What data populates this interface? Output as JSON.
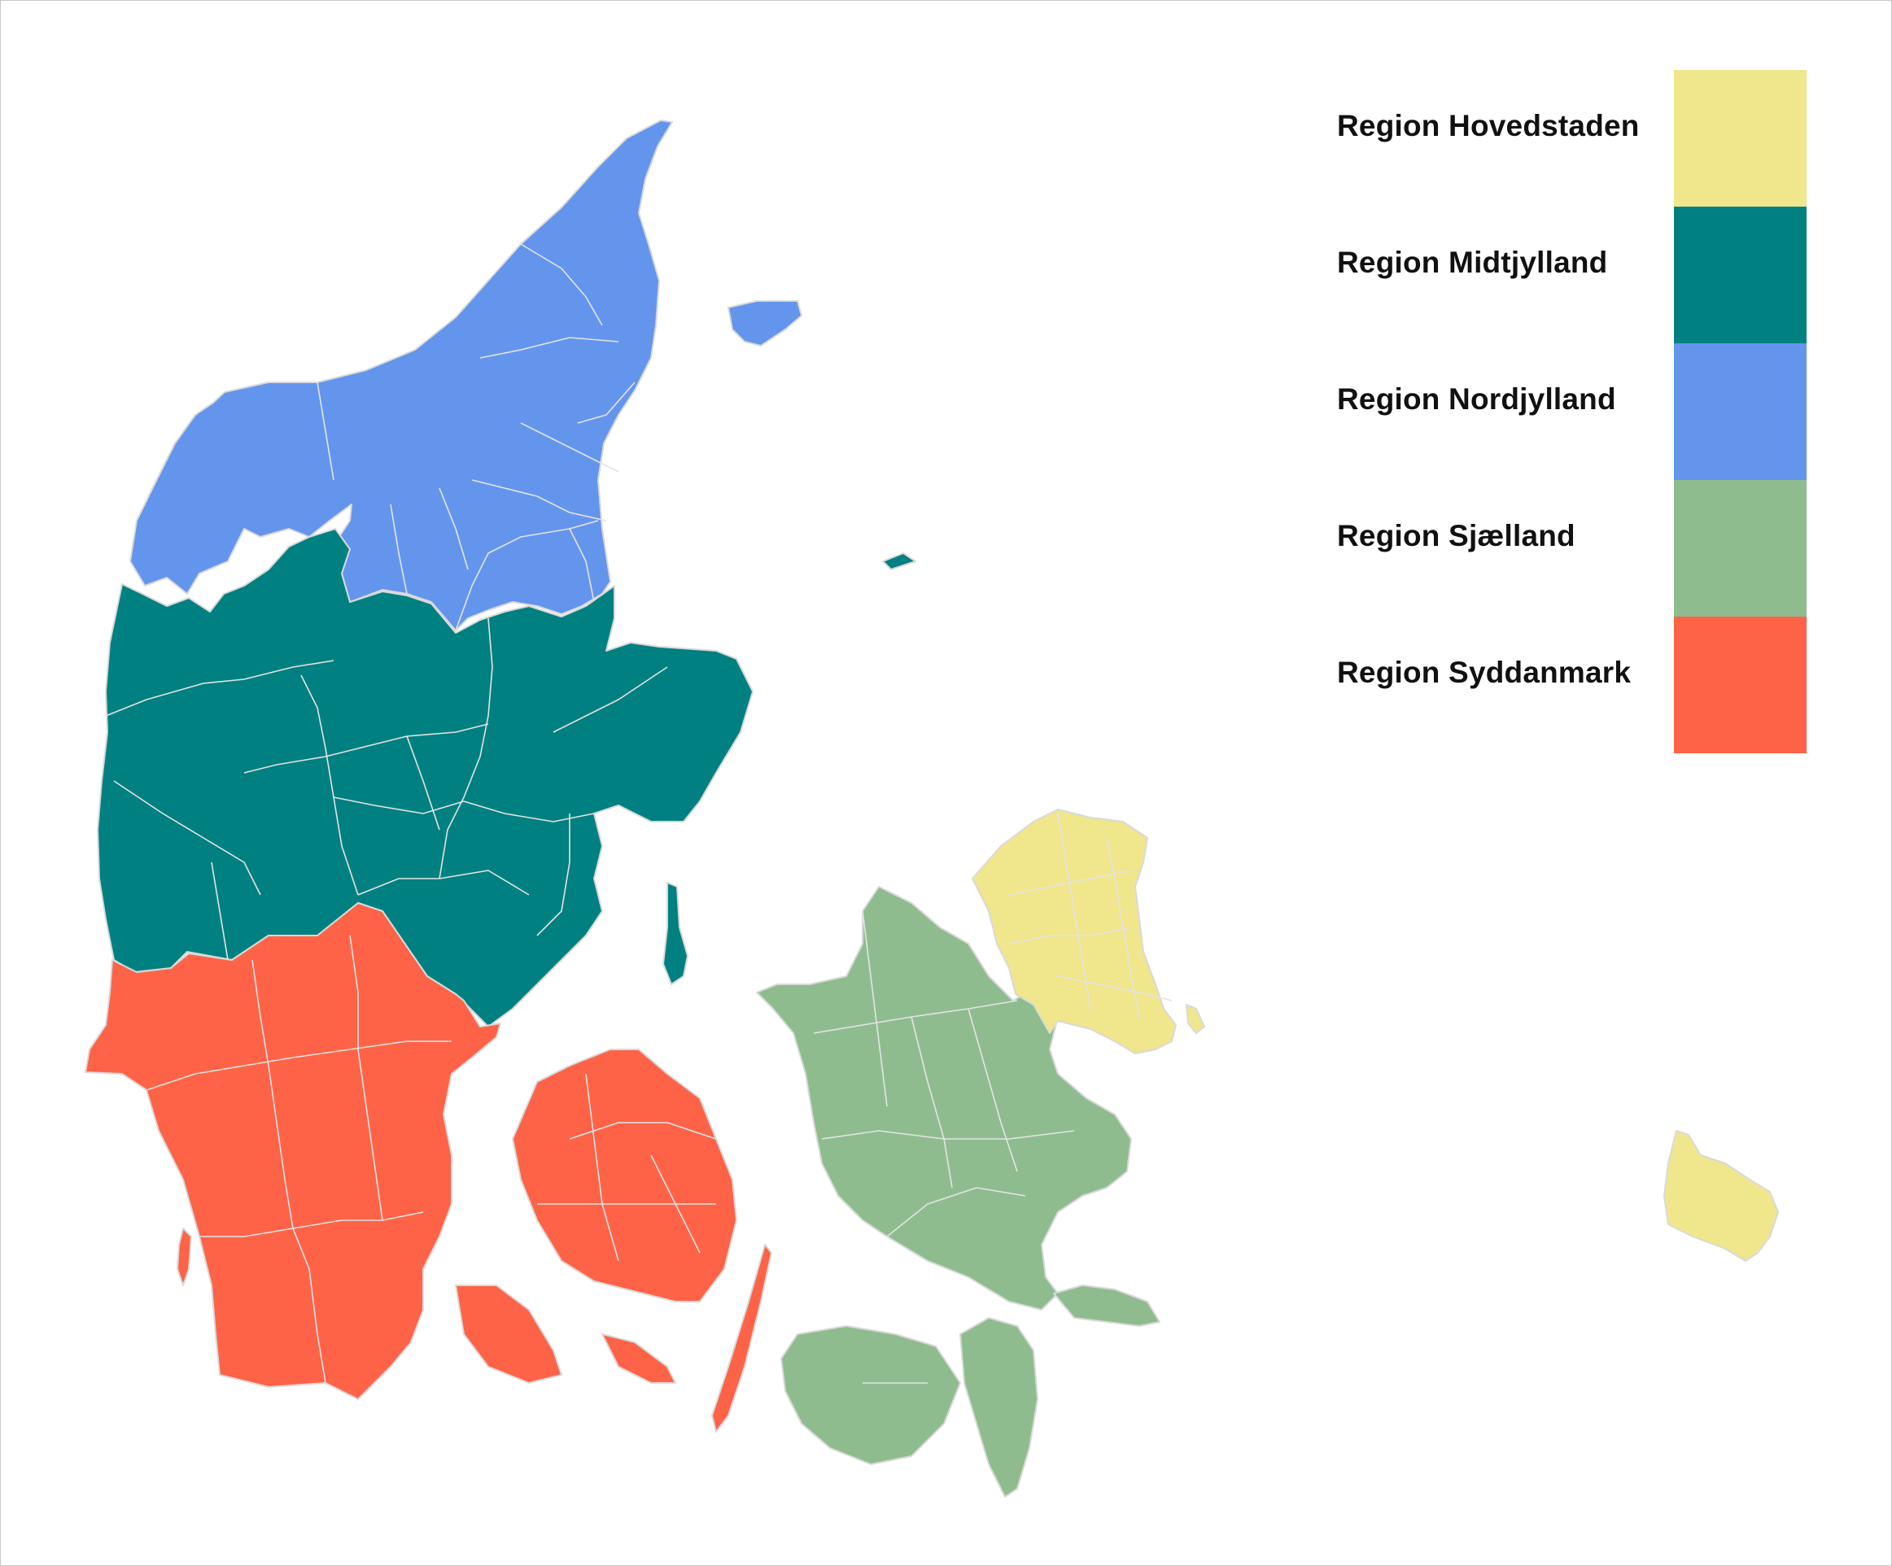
{
  "map": {
    "regions": [
      {
        "key": "nordjylland",
        "name": "Region Nordjylland",
        "color": "#6495ED"
      },
      {
        "key": "midtjylland",
        "name": "Region Midtjylland",
        "color": "#008080"
      },
      {
        "key": "syddanmark",
        "name": "Region Syddanmark",
        "color": "#FF6347"
      },
      {
        "key": "sjaelland",
        "name": "Region Sjælland",
        "color": "#8FBC8F"
      },
      {
        "key": "hovedstaden",
        "name": "Region Hovedstaden",
        "color": "#F0E68C"
      }
    ]
  },
  "legend": {
    "items": [
      {
        "label": "Region Hovedstaden",
        "color": "#F0E68C"
      },
      {
        "label": "Region Midtjylland",
        "color": "#008080"
      },
      {
        "label": "Region Nordjylland",
        "color": "#6495ED"
      },
      {
        "label": "Region Sjælland",
        "color": "#8FBC8F"
      },
      {
        "label": "Region Syddanmark",
        "color": "#FF6347"
      }
    ]
  },
  "style": {
    "border_color": "#d9d9d9",
    "background": "#ffffff"
  }
}
